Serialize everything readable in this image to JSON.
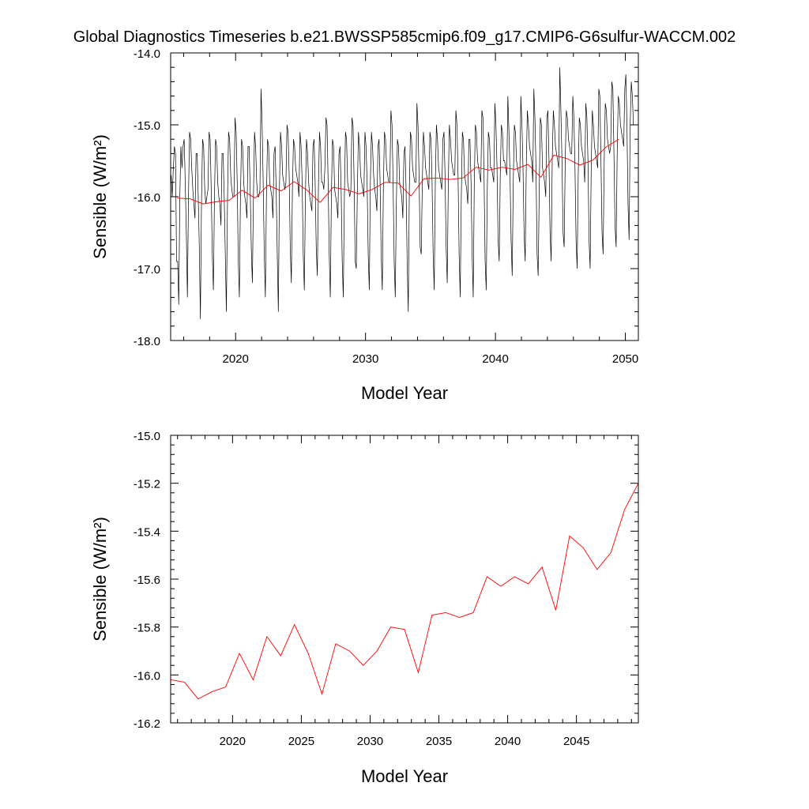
{
  "title": "Global Diagnostics Timeseries b.e21.BWSSP585cmip6.f09_g17.CMIP6-G6sulfur-WACCM.002",
  "colors": {
    "monthly": "#000000",
    "annual": "#ff0000",
    "frame": "#000000"
  },
  "chart_data": [
    {
      "type": "line",
      "xlabel": "Model Year",
      "ylabel": "Sensible (W/m²)",
      "xlim": [
        2015,
        2051
      ],
      "ylim": [
        -18.0,
        -14.0
      ],
      "x_ticks": [
        2020,
        2030,
        2040,
        2050
      ],
      "x_tick_labels": [
        "2020",
        "2030",
        "2040",
        "2050"
      ],
      "y_ticks": [
        -18.0,
        -17.0,
        -16.0,
        -15.0,
        -14.0
      ],
      "y_tick_labels": [
        "-18.0",
        "-17.0",
        "-16.0",
        "-15.0",
        "-14.0"
      ],
      "grid": false,
      "legend": "none",
      "series": [
        {
          "style": "monthly-black",
          "x_start": 2015.04,
          "x_step": 0.08333,
          "values": [
            -15.7,
            -16.0,
            -15.6,
            -15.3,
            -15.4,
            -16.9,
            -16.9,
            -17.5,
            -16.0,
            -15.3,
            -15.6,
            -15.3,
            -15.2,
            -15.8,
            -16.5,
            -17.4,
            -16.0,
            -15.1,
            -15.2,
            -15.6,
            -15.9,
            -16.1,
            -16.3,
            -15.4,
            -15.4,
            -16.0,
            -16.7,
            -17.7,
            -16.1,
            -15.2,
            -15.3,
            -15.9,
            -16.1,
            -16.0,
            -15.9,
            -15.1,
            -15.2,
            -15.9,
            -16.8,
            -17.3,
            -16.0,
            -15.2,
            -15.3,
            -15.8,
            -16.0,
            -16.1,
            -16.4,
            -15.4,
            -15.4,
            -16.0,
            -16.8,
            -17.6,
            -16.1,
            -15.1,
            -15.2,
            -15.7,
            -15.9,
            -16.0,
            -16.0,
            -14.9,
            -15.1,
            -15.8,
            -16.9,
            -17.4,
            -16.0,
            -15.2,
            -15.3,
            -15.8,
            -16.0,
            -16.1,
            -16.3,
            -15.3,
            -15.3,
            -15.9,
            -16.7,
            -17.2,
            -16.0,
            -15.1,
            -15.3,
            -15.8,
            -16.0,
            -16.0,
            -15.9,
            -14.5,
            -15.0,
            -15.8,
            -16.8,
            -17.4,
            -16.0,
            -15.2,
            -15.3,
            -15.8,
            -15.9,
            -16.0,
            -16.3,
            -15.4,
            -15.3,
            -15.9,
            -16.8,
            -17.6,
            -15.9,
            -15.1,
            -15.3,
            -15.7,
            -15.8,
            -15.9,
            -15.8,
            -15.0,
            -15.1,
            -15.7,
            -16.7,
            -17.2,
            -15.9,
            -15.2,
            -15.3,
            -15.6,
            -15.7,
            -15.8,
            -16.0,
            -15.1,
            -15.3,
            -15.8,
            -16.8,
            -17.3,
            -16.0,
            -15.2,
            -15.4,
            -15.8,
            -16.0,
            -16.1,
            -16.2,
            -15.3,
            -15.2,
            -15.8,
            -16.7,
            -17.1,
            -15.9,
            -15.1,
            -15.3,
            -15.8,
            -15.8,
            -15.9,
            -15.6,
            -14.9,
            -15.0,
            -15.8,
            -16.8,
            -17.4,
            -16.0,
            -15.2,
            -15.3,
            -15.9,
            -16.0,
            -16.1,
            -16.3,
            -15.4,
            -15.3,
            -15.9,
            -16.9,
            -17.4,
            -16.0,
            -15.1,
            -15.2,
            -15.8,
            -15.9,
            -16.0,
            -15.9,
            -14.9,
            -15.0,
            -15.8,
            -16.9,
            -17.0,
            -15.9,
            -15.1,
            -15.3,
            -15.7,
            -15.8,
            -15.9,
            -16.0,
            -15.1,
            -15.3,
            -15.8,
            -16.8,
            -17.3,
            -15.8,
            -15.1,
            -15.3,
            -15.7,
            -15.9,
            -16.0,
            -16.2,
            -15.3,
            -15.2,
            -15.8,
            -16.8,
            -17.3,
            -15.9,
            -15.1,
            -15.2,
            -15.6,
            -15.7,
            -15.8,
            -15.8,
            -14.8,
            -15.0,
            -15.8,
            -16.9,
            -17.4,
            -16.1,
            -15.2,
            -15.3,
            -15.8,
            -15.9,
            -16.0,
            -16.3,
            -15.4,
            -15.3,
            -15.9,
            -16.9,
            -17.6,
            -15.9,
            -15.1,
            -15.2,
            -15.6,
            -15.7,
            -15.8,
            -15.8,
            -14.7,
            -15.0,
            -15.7,
            -16.7,
            -16.8,
            -15.8,
            -15.1,
            -15.3,
            -15.6,
            -15.7,
            -15.8,
            -15.9,
            -15.1,
            -15.2,
            -15.8,
            -16.8,
            -17.3,
            -15.8,
            -15.0,
            -15.2,
            -15.6,
            -15.7,
            -15.8,
            -15.9,
            -15.2,
            -15.1,
            -15.7,
            -16.7,
            -17.2,
            -15.8,
            -15.0,
            -15.2,
            -15.5,
            -15.6,
            -15.7,
            -15.7,
            -14.8,
            -15.0,
            -15.7,
            -16.8,
            -17.4,
            -16.0,
            -15.1,
            -15.2,
            -15.7,
            -15.8,
            -15.9,
            -16.1,
            -15.2,
            -15.2,
            -15.8,
            -16.8,
            -17.4,
            -15.8,
            -15.0,
            -15.1,
            -15.5,
            -15.6,
            -15.7,
            -15.8,
            -14.8,
            -14.9,
            -15.7,
            -16.9,
            -17.3,
            -15.9,
            -15.1,
            -15.2,
            -15.6,
            -15.6,
            -15.7,
            -15.8,
            -14.7,
            -15.0,
            -15.6,
            -16.6,
            -16.9,
            -15.7,
            -15.0,
            -15.1,
            -15.5,
            -15.5,
            -15.6,
            -15.7,
            -14.6,
            -15.1,
            -15.7,
            -16.6,
            -17.1,
            -15.8,
            -15.0,
            -15.1,
            -15.5,
            -15.6,
            -15.7,
            -15.8,
            -14.6,
            -15.0,
            -15.6,
            -16.5,
            -16.9,
            -15.6,
            -14.8,
            -15.0,
            -15.3,
            -15.4,
            -15.5,
            -15.8,
            -14.5,
            -14.9,
            -15.6,
            -16.8,
            -17.1,
            -15.9,
            -14.9,
            -15.0,
            -15.6,
            -15.7,
            -15.8,
            -16.0,
            -14.9,
            -14.8,
            -15.5,
            -16.5,
            -16.9,
            -15.5,
            -14.8,
            -15.0,
            -15.3,
            -15.4,
            -15.5,
            -15.6,
            -14.2,
            -14.8,
            -15.5,
            -16.5,
            -16.7,
            -15.5,
            -14.8,
            -14.9,
            -15.2,
            -15.3,
            -15.4,
            -15.4,
            -14.6,
            -14.9,
            -15.6,
            -16.6,
            -17.0,
            -15.7,
            -14.9,
            -15.0,
            -15.3,
            -15.4,
            -15.5,
            -15.8,
            -14.7,
            -14.9,
            -15.5,
            -16.6,
            -17.0,
            -15.6,
            -14.8,
            -15.0,
            -15.3,
            -15.4,
            -15.5,
            -15.6,
            -14.5,
            -14.6,
            -15.5,
            -16.5,
            -16.8,
            -15.5,
            -14.7,
            -14.8,
            -15.2,
            -15.3,
            -15.4,
            -15.3,
            -14.4,
            -14.5,
            -15.4,
            -16.4,
            -16.7,
            -15.4,
            -14.6,
            -14.7,
            -15.0,
            -15.1,
            -15.2,
            -15.3,
            -14.5,
            -14.3,
            -15.0,
            -16.1,
            -16.6,
            -15.0,
            -14.4,
            -14.6,
            -15.0
          ]
        },
        {
          "style": "annual-red",
          "x": [
            2015.5,
            2016.5,
            2017.5,
            2018.5,
            2019.5,
            2020.5,
            2021.5,
            2022.5,
            2023.5,
            2024.5,
            2025.5,
            2026.5,
            2027.5,
            2028.5,
            2029.5,
            2030.5,
            2031.5,
            2032.5,
            2033.5,
            2034.5,
            2035.5,
            2036.5,
            2037.5,
            2038.5,
            2039.5,
            2040.5,
            2041.5,
            2042.5,
            2043.5,
            2044.5,
            2045.5,
            2046.5,
            2047.5,
            2048.5,
            2049.5
          ],
          "values": [
            -16.02,
            -16.03,
            -16.1,
            -16.07,
            -16.05,
            -15.91,
            -16.02,
            -15.84,
            -15.92,
            -15.79,
            -15.91,
            -16.08,
            -15.87,
            -15.9,
            -15.96,
            -15.9,
            -15.8,
            -15.81,
            -15.99,
            -15.75,
            -15.74,
            -15.76,
            -15.74,
            -15.59,
            -15.63,
            -15.59,
            -15.62,
            -15.55,
            -15.73,
            -15.42,
            -15.47,
            -15.56,
            -15.49,
            -15.31,
            -15.2
          ]
        }
      ]
    },
    {
      "type": "line",
      "xlabel": "Model Year",
      "ylabel": "Sensible (W/m²)",
      "xlim": [
        2015.5,
        2049.5
      ],
      "ylim": [
        -16.2,
        -15.0
      ],
      "x_ticks": [
        2020,
        2025,
        2030,
        2035,
        2040,
        2045
      ],
      "x_tick_labels": [
        "2020",
        "2025",
        "2030",
        "2035",
        "2040",
        "2045"
      ],
      "y_ticks": [
        -16.2,
        -16.0,
        -15.8,
        -15.6,
        -15.4,
        -15.2,
        -15.0
      ],
      "y_tick_labels": [
        "-16.2",
        "-16.0",
        "-15.8",
        "-15.6",
        "-15.4",
        "-15.2",
        "-15.0"
      ],
      "grid": false,
      "legend": "none",
      "series": [
        {
          "style": "annual-red",
          "x": [
            2015.5,
            2016.5,
            2017.5,
            2018.5,
            2019.5,
            2020.5,
            2021.5,
            2022.5,
            2023.5,
            2024.5,
            2025.5,
            2026.5,
            2027.5,
            2028.5,
            2029.5,
            2030.5,
            2031.5,
            2032.5,
            2033.5,
            2034.5,
            2035.5,
            2036.5,
            2037.5,
            2038.5,
            2039.5,
            2040.5,
            2041.5,
            2042.5,
            2043.5,
            2044.5,
            2045.5,
            2046.5,
            2047.5,
            2048.5,
            2049.5
          ],
          "values": [
            -16.02,
            -16.03,
            -16.1,
            -16.07,
            -16.05,
            -15.91,
            -16.02,
            -15.84,
            -15.92,
            -15.79,
            -15.91,
            -16.08,
            -15.87,
            -15.9,
            -15.96,
            -15.9,
            -15.8,
            -15.81,
            -15.99,
            -15.75,
            -15.74,
            -15.76,
            -15.74,
            -15.59,
            -15.63,
            -15.59,
            -15.62,
            -15.55,
            -15.73,
            -15.42,
            -15.47,
            -15.56,
            -15.49,
            -15.31,
            -15.2
          ]
        }
      ]
    }
  ]
}
